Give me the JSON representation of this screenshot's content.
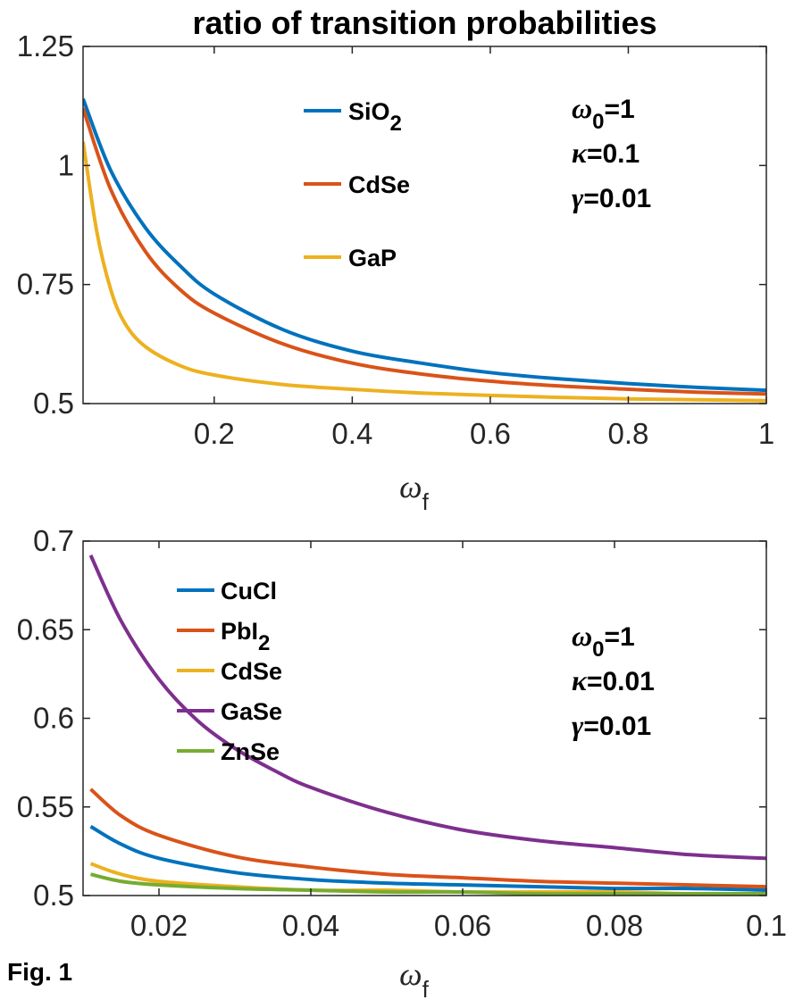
{
  "figure_label": "Fig. 1",
  "chart_data": [
    {
      "type": "line",
      "title": "ratio of transition probabilities",
      "xlabel": "ω",
      "xlabel_sub": "f",
      "ylabel": "",
      "xlim": [
        0.01,
        1
      ],
      "ylim": [
        0.5,
        1.25
      ],
      "xticks": [
        0.2,
        0.4,
        0.6,
        0.8,
        1
      ],
      "xtick_labels": [
        "0.2",
        "0.4",
        "0.6",
        "0.8",
        "1"
      ],
      "yticks": [
        0.5,
        0.75,
        1,
        1.25
      ],
      "ytick_labels": [
        "0.5",
        "0.75",
        "1",
        "1.25"
      ],
      "grid": false,
      "legend_position": "top-center",
      "params": [
        {
          "symbol": "ω",
          "sub": "0",
          "value": "=1"
        },
        {
          "symbol": "κ",
          "sub": "",
          "value": "=0.1"
        },
        {
          "symbol": "γ",
          "sub": "",
          "value": "=0.01"
        }
      ],
      "series": [
        {
          "name": "SiO",
          "name_sub": "2",
          "color": "#0072BD",
          "x": [
            0.01,
            0.05,
            0.1,
            0.15,
            0.2,
            0.3,
            0.4,
            0.5,
            0.6,
            0.7,
            0.8,
            0.9,
            1.0
          ],
          "y": [
            1.14,
            0.99,
            0.87,
            0.79,
            0.73,
            0.655,
            0.61,
            0.585,
            0.565,
            0.552,
            0.542,
            0.534,
            0.528
          ]
        },
        {
          "name": "CdSe",
          "name_sub": "",
          "color": "#D95319",
          "x": [
            0.01,
            0.05,
            0.1,
            0.15,
            0.2,
            0.3,
            0.4,
            0.5,
            0.6,
            0.7,
            0.8,
            0.9,
            1.0
          ],
          "y": [
            1.12,
            0.95,
            0.82,
            0.74,
            0.69,
            0.625,
            0.585,
            0.562,
            0.547,
            0.537,
            0.53,
            0.524,
            0.52
          ]
        },
        {
          "name": "GaP",
          "name_sub": "",
          "color": "#EDB120",
          "x": [
            0.01,
            0.03,
            0.05,
            0.07,
            0.1,
            0.15,
            0.2,
            0.3,
            0.4,
            0.5,
            0.6,
            0.7,
            0.8,
            0.9,
            1.0
          ],
          "y": [
            1.05,
            0.86,
            0.74,
            0.67,
            0.62,
            0.58,
            0.56,
            0.54,
            0.53,
            0.522,
            0.517,
            0.513,
            0.51,
            0.508,
            0.506
          ]
        }
      ]
    },
    {
      "type": "line",
      "title": "",
      "xlabel": "ω",
      "xlabel_sub": "f",
      "ylabel": "",
      "xlim": [
        0.01,
        0.1
      ],
      "ylim": [
        0.5,
        0.7
      ],
      "xticks": [
        0.02,
        0.04,
        0.06,
        0.08,
        0.1
      ],
      "xtick_labels": [
        "0.02",
        "0.04",
        "0.06",
        "0.08",
        "0.1"
      ],
      "yticks": [
        0.5,
        0.55,
        0.6,
        0.65,
        0.7
      ],
      "ytick_labels": [
        "0.5",
        "0.55",
        "0.6",
        "0.65",
        "0.7"
      ],
      "grid": false,
      "legend_position": "top-left",
      "params": [
        {
          "symbol": "ω",
          "sub": "0",
          "value": "=1"
        },
        {
          "symbol": "κ",
          "sub": "",
          "value": "=0.01"
        },
        {
          "symbol": "γ",
          "sub": "",
          "value": "=0.01"
        }
      ],
      "series": [
        {
          "name": "CuCl",
          "name_sub": "",
          "color": "#0072BD",
          "x": [
            0.011,
            0.015,
            0.02,
            0.03,
            0.04,
            0.05,
            0.06,
            0.07,
            0.08,
            0.09,
            0.1
          ],
          "y": [
            0.539,
            0.529,
            0.521,
            0.513,
            0.509,
            0.507,
            0.506,
            0.505,
            0.504,
            0.504,
            0.503
          ]
        },
        {
          "name": "PbI",
          "name_sub": "2",
          "color": "#D95319",
          "x": [
            0.011,
            0.015,
            0.02,
            0.03,
            0.04,
            0.05,
            0.06,
            0.07,
            0.08,
            0.09,
            0.1
          ],
          "y": [
            0.56,
            0.545,
            0.534,
            0.522,
            0.516,
            0.512,
            0.51,
            0.508,
            0.507,
            0.506,
            0.505
          ]
        },
        {
          "name": "CdSe",
          "name_sub": "",
          "color": "#EDB120",
          "x": [
            0.011,
            0.015,
            0.02,
            0.03,
            0.04,
            0.05,
            0.06,
            0.07,
            0.08,
            0.09,
            0.1
          ],
          "y": [
            0.518,
            0.512,
            0.508,
            0.505,
            0.503,
            0.503,
            0.502,
            0.502,
            0.502,
            0.501,
            0.501
          ]
        },
        {
          "name": "GaSe",
          "name_sub": "",
          "color": "#7E2F8E",
          "x": [
            0.011,
            0.015,
            0.02,
            0.025,
            0.03,
            0.035,
            0.04,
            0.05,
            0.06,
            0.07,
            0.08,
            0.09,
            0.1
          ],
          "y": [
            0.692,
            0.655,
            0.622,
            0.599,
            0.583,
            0.571,
            0.561,
            0.547,
            0.537,
            0.531,
            0.527,
            0.523,
            0.521
          ]
        },
        {
          "name": "ZnSe",
          "name_sub": "",
          "color": "#77AC30",
          "x": [
            0.011,
            0.015,
            0.02,
            0.03,
            0.04,
            0.05,
            0.06,
            0.07,
            0.08,
            0.09,
            0.1
          ],
          "y": [
            0.512,
            0.508,
            0.506,
            0.504,
            0.503,
            0.502,
            0.502,
            0.501,
            0.501,
            0.501,
            0.501
          ]
        }
      ]
    }
  ]
}
